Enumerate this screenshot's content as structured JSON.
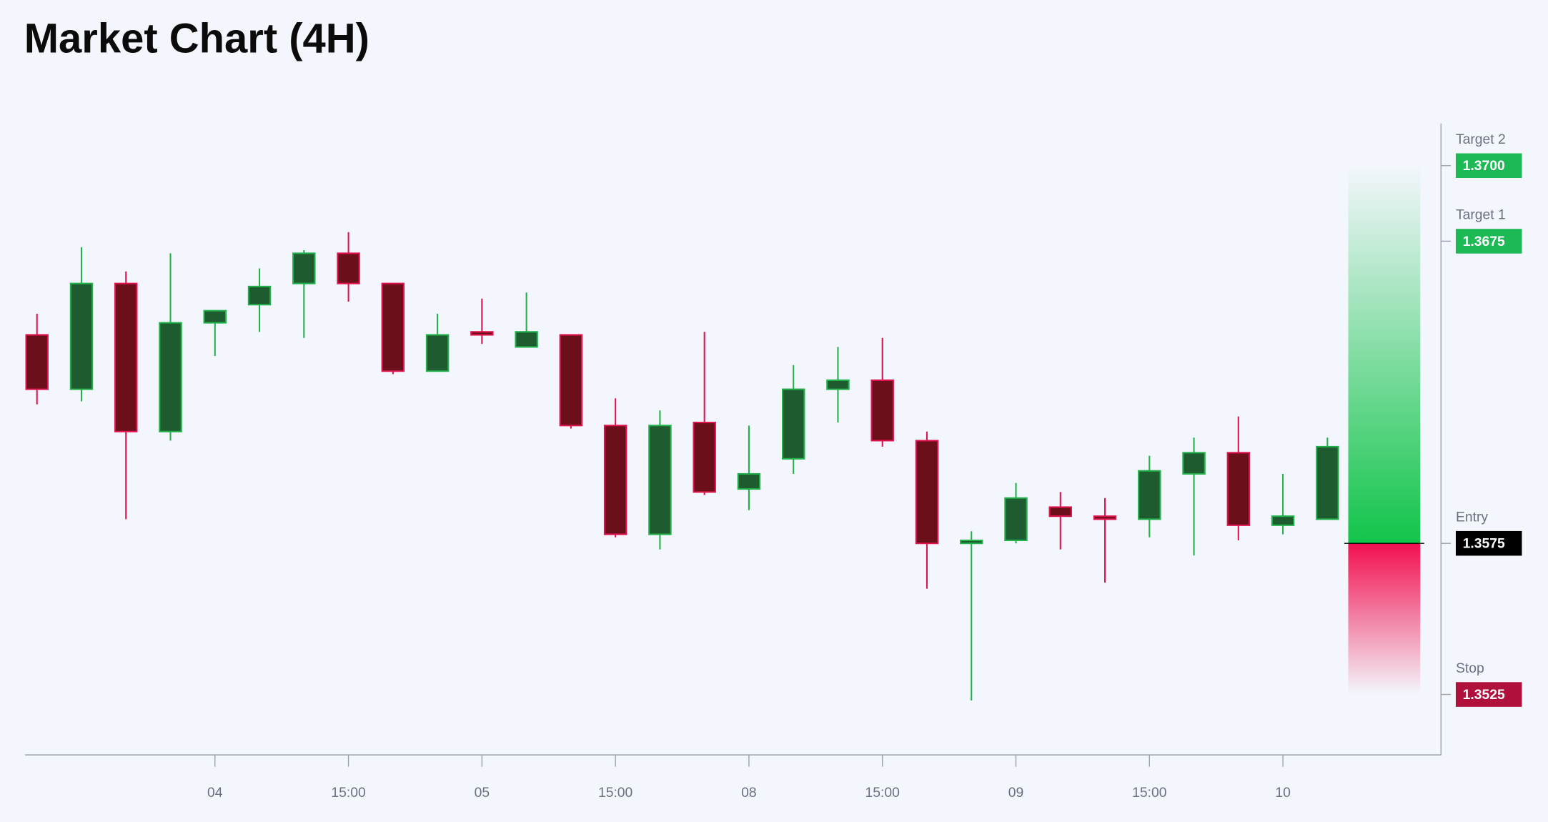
{
  "chart_data": {
    "type": "candlestick",
    "title": "Market Chart (4H)",
    "categories": [
      null,
      null,
      null,
      null,
      "04",
      null,
      null,
      "15:00",
      null,
      null,
      "05",
      null,
      null,
      "15:00",
      null,
      null,
      "08",
      null,
      null,
      "15:00",
      null,
      null,
      "09",
      null,
      null,
      "15:00",
      null,
      null,
      "10",
      null
    ],
    "open": [
      1.3644,
      1.3626,
      1.3661,
      1.3612,
      1.3648,
      1.3654,
      1.3661,
      1.3671,
      1.3661,
      1.3632,
      1.3645,
      1.364,
      1.3644,
      1.3614,
      1.3578,
      1.3615,
      1.3593,
      1.3603,
      1.3626,
      1.3629,
      1.3609,
      1.3575,
      1.3576,
      1.3587,
      1.3584,
      1.3583,
      1.3598,
      1.3605,
      1.3581,
      1.3583
    ],
    "high": [
      1.3651,
      1.3673,
      1.3665,
      1.3671,
      1.3652,
      1.3666,
      1.3672,
      1.3678,
      1.3661,
      1.3651,
      1.3656,
      1.3658,
      1.3644,
      1.3623,
      1.3619,
      1.3645,
      1.3614,
      1.3634,
      1.364,
      1.3643,
      1.3612,
      1.3579,
      1.3595,
      1.3592,
      1.359,
      1.3604,
      1.361,
      1.3617,
      1.3598,
      1.361
    ],
    "low": [
      1.3621,
      1.3622,
      1.3583,
      1.3609,
      1.3637,
      1.3645,
      1.3643,
      1.3655,
      1.3631,
      1.3632,
      1.3641,
      1.364,
      1.3613,
      1.3577,
      1.3573,
      1.3591,
      1.3586,
      1.3598,
      1.3615,
      1.3607,
      1.356,
      1.3523,
      1.3575,
      1.3573,
      1.3562,
      1.3577,
      1.3571,
      1.3576,
      1.3578,
      1.3583
    ],
    "close": [
      1.3626,
      1.3661,
      1.3612,
      1.3648,
      1.3652,
      1.366,
      1.3671,
      1.3661,
      1.3632,
      1.3644,
      1.3644,
      1.3645,
      1.3614,
      1.3578,
      1.3614,
      1.3592,
      1.3598,
      1.3626,
      1.3629,
      1.3609,
      1.3575,
      1.3576,
      1.359,
      1.3584,
      1.3583,
      1.3599,
      1.3605,
      1.3581,
      1.3584,
      1.3607
    ],
    "up_color": "#22b04b",
    "down_color": "#e0134f",
    "ylim": [
      1.3505,
      1.3714
    ],
    "levels": {
      "names": [
        "Target 2",
        "Target 1",
        "Entry",
        "Stop"
      ],
      "values": [
        1.37,
        1.3675,
        1.3575,
        1.3525
      ],
      "value_labels": [
        "1.3700",
        "1.3675",
        "1.3575",
        "1.3525"
      ],
      "colors": [
        "#1db954",
        "#1db954",
        "#000000",
        "#b0103c"
      ]
    }
  }
}
